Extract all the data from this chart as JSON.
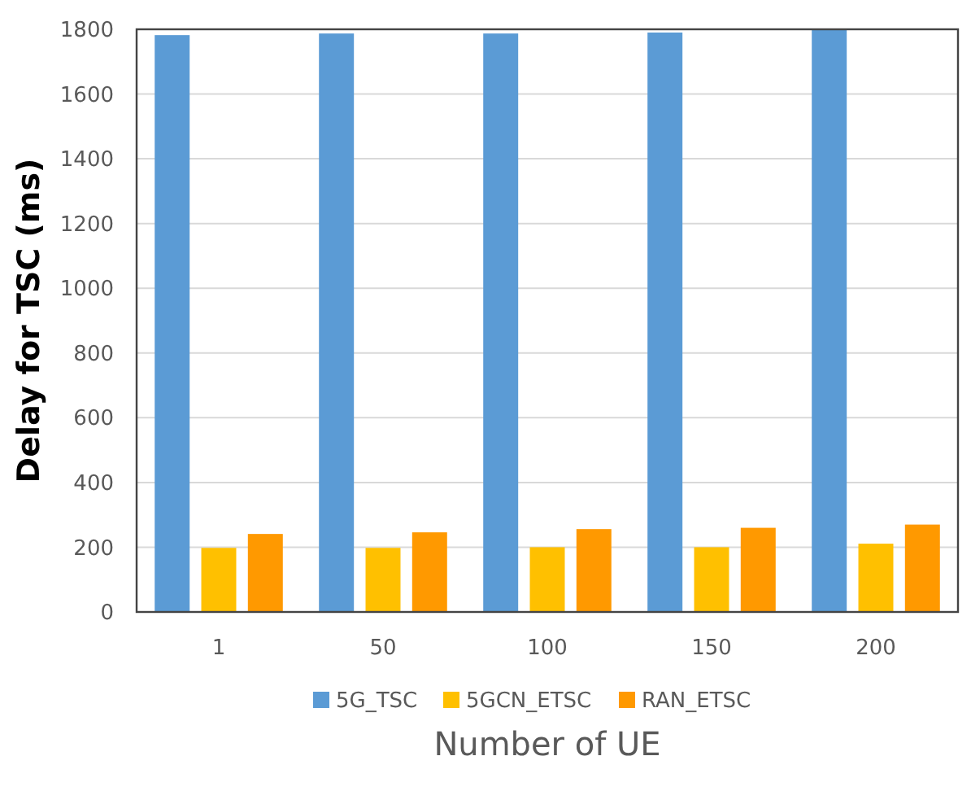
{
  "chart_data": {
    "type": "bar",
    "xlabel": "Number of UE",
    "ylabel": "Delay for TSC (ms)",
    "categories": [
      "1",
      "50",
      "100",
      "150",
      "200"
    ],
    "series": [
      {
        "name": "5G_TSC",
        "color": "#5b9bd5",
        "values": [
          1782,
          1787,
          1787,
          1790,
          1800
        ]
      },
      {
        "name": "5GCN_ETSC",
        "color": "#ffc000",
        "values": [
          198,
          198,
          200,
          200,
          211
        ]
      },
      {
        "name": "RAN_ETSC",
        "color": "#ff9900",
        "values": [
          241,
          246,
          256,
          260,
          270
        ]
      }
    ],
    "ylim": [
      0,
      1800
    ],
    "yticks": [
      0,
      200,
      400,
      600,
      800,
      1000,
      1200,
      1400,
      1600,
      1800
    ],
    "grid": "y",
    "legend": "bottom"
  }
}
